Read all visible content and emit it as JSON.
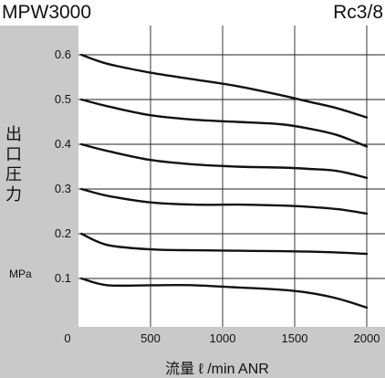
{
  "header": {
    "model": "MPW3000",
    "port": "Rc3/8"
  },
  "chart_data": {
    "type": "line",
    "title": "MPW3000",
    "subtitle": "Rc3/8",
    "ylabel_chars": [
      "出",
      "口",
      "圧",
      "力"
    ],
    "yunit": "MPa",
    "xlabel": "流量 ℓ /min ANR",
    "xlim": [
      0,
      2000
    ],
    "ylim": [
      0,
      0.65
    ],
    "xticks": [
      0,
      500,
      1000,
      1500,
      2000
    ],
    "xtick_labels": [
      "0",
      "500",
      "1000",
      "1500",
      "2000"
    ],
    "yticks": [
      0.1,
      0.2,
      0.3,
      0.4,
      0.5,
      0.6
    ],
    "ytick_labels": [
      "0.1",
      "0.2",
      "0.3",
      "0.4",
      "0.5",
      "0.6"
    ],
    "grid": true,
    "series": [
      {
        "x": [
          20,
          200,
          500,
          800,
          1100,
          1400,
          1600,
          1800,
          2000
        ],
        "values": [
          0.6,
          0.58,
          0.56,
          0.545,
          0.53,
          0.51,
          0.495,
          0.48,
          0.46
        ]
      },
      {
        "x": [
          20,
          200,
          500,
          800,
          1100,
          1400,
          1600,
          1800,
          2000
        ],
        "values": [
          0.5,
          0.485,
          0.465,
          0.455,
          0.45,
          0.445,
          0.435,
          0.42,
          0.395
        ]
      },
      {
        "x": [
          20,
          200,
          500,
          800,
          1100,
          1400,
          1600,
          1800,
          2000
        ],
        "values": [
          0.4,
          0.385,
          0.365,
          0.355,
          0.35,
          0.348,
          0.345,
          0.34,
          0.325
        ]
      },
      {
        "x": [
          20,
          200,
          500,
          800,
          1100,
          1400,
          1600,
          1800,
          2000
        ],
        "values": [
          0.3,
          0.285,
          0.27,
          0.265,
          0.265,
          0.263,
          0.26,
          0.255,
          0.245
        ]
      },
      {
        "x": [
          20,
          200,
          500,
          800,
          1100,
          1400,
          1600,
          1800,
          2000
        ],
        "values": [
          0.2,
          0.175,
          0.165,
          0.163,
          0.162,
          0.161,
          0.16,
          0.158,
          0.155
        ]
      },
      {
        "x": [
          20,
          200,
          500,
          800,
          1100,
          1400,
          1600,
          1800,
          2000
        ],
        "values": [
          0.1,
          0.085,
          0.085,
          0.085,
          0.08,
          0.075,
          0.068,
          0.055,
          0.035
        ]
      }
    ]
  }
}
